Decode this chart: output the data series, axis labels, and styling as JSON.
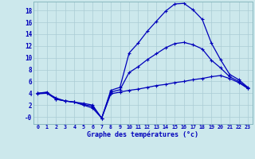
{
  "title": "Graphe des températures (°c)",
  "bg_color": "#cce8ec",
  "line_color": "#0000bb",
  "grid_color": "#aaccd4",
  "xlim": [
    -0.5,
    23.5
  ],
  "ylim": [
    -1.2,
    19.5
  ],
  "xticks": [
    0,
    1,
    2,
    3,
    4,
    5,
    6,
    7,
    8,
    9,
    10,
    11,
    12,
    13,
    14,
    15,
    16,
    17,
    18,
    19,
    20,
    21,
    22,
    23
  ],
  "yticks": [
    0,
    2,
    4,
    6,
    8,
    10,
    12,
    14,
    16,
    18
  ],
  "ytick_labels": [
    "-0",
    "2",
    "4",
    "6",
    "8",
    "10",
    "12",
    "14",
    "16",
    "18"
  ],
  "max_temps": [
    4.0,
    4.2,
    3.0,
    2.7,
    2.5,
    2.3,
    2.0,
    -0.2,
    4.5,
    5.0,
    10.8,
    12.5,
    14.5,
    16.2,
    17.9,
    19.1,
    19.2,
    18.1,
    16.5,
    12.5,
    9.7,
    7.2,
    6.3,
    5.0
  ],
  "min_temps": [
    3.9,
    4.0,
    3.0,
    2.7,
    2.5,
    2.0,
    1.5,
    -0.2,
    3.9,
    4.2,
    4.5,
    4.7,
    5.0,
    5.3,
    5.5,
    5.8,
    6.0,
    6.3,
    6.5,
    6.8,
    7.0,
    6.5,
    5.8,
    4.8
  ],
  "avg_temps": [
    4.0,
    4.1,
    3.2,
    2.7,
    2.5,
    2.1,
    1.8,
    -0.2,
    4.2,
    4.6,
    7.5,
    8.5,
    9.7,
    10.7,
    11.7,
    12.4,
    12.6,
    12.2,
    11.5,
    9.6,
    8.3,
    6.8,
    6.0,
    4.9
  ]
}
